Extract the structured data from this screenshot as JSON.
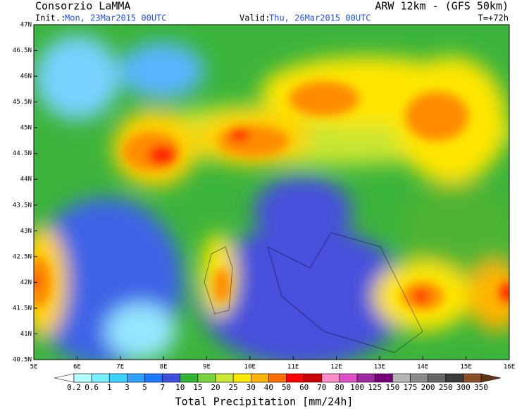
{
  "header": {
    "title": "Consorzio LaMMA",
    "model": "ARW 12km - (GFS 50km)",
    "init_label": "Init.:",
    "init": "Mon, 23Mar2015 00UTC",
    "valid_label": "Valid:",
    "valid": "Thu, 26Mar2015 00UTC",
    "lead": "T=+72h"
  },
  "map": {
    "lat_labels": [
      "47N",
      "46.5N",
      "46N",
      "45.5N",
      "45N",
      "44.5N",
      "44N",
      "43.5N",
      "43N",
      "42.5N",
      "42N",
      "41.5N",
      "41N",
      "40.5N"
    ],
    "lon_labels": [
      "5E",
      "6E",
      "7E",
      "8E",
      "9E",
      "10E",
      "11E",
      "12E",
      "13E",
      "14E",
      "15E",
      "16E"
    ]
  },
  "colorbar": {
    "title": "Total Precipitation [mm/24h]",
    "labels": [
      0.2,
      0.6,
      1,
      3,
      5,
      7,
      10,
      15,
      20,
      25,
      30,
      40,
      50,
      60,
      70,
      80,
      100,
      125,
      150,
      175,
      200,
      250,
      300,
      350
    ],
    "colors": [
      "#ffffff",
      "#b4ffff",
      "#78f0ff",
      "#3cd2ff",
      "#32a0ff",
      "#1e78ff",
      "#3c50dc",
      "#32b432",
      "#78d23c",
      "#c8e632",
      "#ffe600",
      "#ffb400",
      "#ff6e00",
      "#ff0000",
      "#c80000",
      "#ff8cc8",
      "#dc50c8",
      "#a028a0",
      "#780078",
      "#b4b4b4",
      "#8c8c8c",
      "#646464",
      "#3c3c3c",
      "#8c5028",
      "#643214"
    ]
  }
}
